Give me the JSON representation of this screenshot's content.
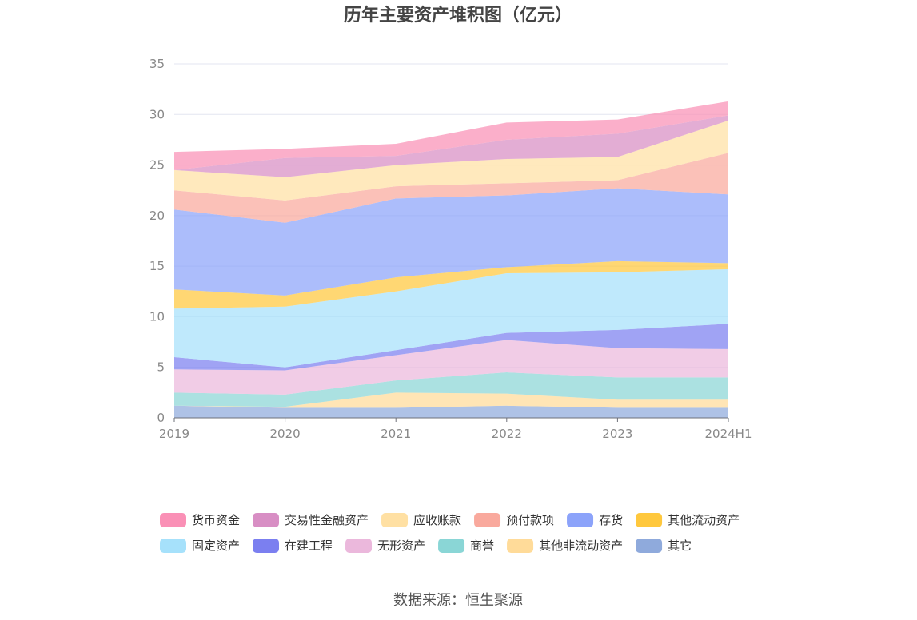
{
  "chart_data": {
    "type": "area",
    "stacked": true,
    "title": "历年主要资产堆积图（亿元）",
    "categories": [
      "2019",
      "2020",
      "2021",
      "2022",
      "2023",
      "2024H1"
    ],
    "ylim": [
      0,
      35
    ],
    "yticks": [
      0,
      5,
      10,
      15,
      20,
      25,
      30,
      35
    ],
    "grid": true,
    "legend_position": "bottom",
    "series": [
      {
        "name": "其它",
        "color": "#8faadc",
        "values": [
          1.2,
          1.0,
          1.0,
          1.2,
          1.0,
          1.0
        ]
      },
      {
        "name": "其他非流动资产",
        "color": "#ffdb99",
        "values": [
          0.0,
          0.1,
          1.5,
          1.2,
          0.8,
          0.8
        ]
      },
      {
        "name": "商誉",
        "color": "#8ad6d6",
        "values": [
          1.3,
          1.2,
          1.2,
          2.1,
          2.2,
          2.2
        ]
      },
      {
        "name": "无形资产",
        "color": "#ebb8dc",
        "values": [
          2.3,
          2.4,
          2.5,
          3.2,
          2.9,
          2.8
        ]
      },
      {
        "name": "在建工程",
        "color": "#7b7ff0",
        "values": [
          1.2,
          0.3,
          0.5,
          0.7,
          1.8,
          2.5
        ]
      },
      {
        "name": "固定资产",
        "color": "#a6e1fb",
        "values": [
          4.8,
          6.0,
          5.8,
          5.9,
          5.7,
          5.4
        ]
      },
      {
        "name": "其他流动资产",
        "color": "#ffc83d",
        "values": [
          1.9,
          1.1,
          1.4,
          0.6,
          1.1,
          0.6
        ]
      },
      {
        "name": "存货",
        "color": "#8ca3fa",
        "values": [
          7.9,
          7.2,
          7.8,
          7.1,
          7.2,
          6.8
        ]
      },
      {
        "name": "预付款项",
        "color": "#f9a99d",
        "values": [
          1.9,
          2.2,
          1.2,
          1.2,
          0.8,
          4.1
        ]
      },
      {
        "name": "应收账款",
        "color": "#ffe0a3",
        "values": [
          2.0,
          2.3,
          2.1,
          2.4,
          2.3,
          3.2
        ]
      },
      {
        "name": "交易性金融资产",
        "color": "#d88ec4",
        "values": [
          0.0,
          1.9,
          0.9,
          1.9,
          2.3,
          0.5
        ]
      },
      {
        "name": "货币资金",
        "color": "#fa90b6",
        "values": [
          1.8,
          0.9,
          1.2,
          1.7,
          1.4,
          1.4
        ]
      }
    ],
    "legend_order": [
      "货币资金",
      "交易性金融资产",
      "应收账款",
      "预付款项",
      "存货",
      "其他流动资产",
      "固定资产",
      "在建工程",
      "无形资产",
      "商誉",
      "其他非流动资产",
      "其它"
    ],
    "source": "数据来源：恒生聚源"
  }
}
